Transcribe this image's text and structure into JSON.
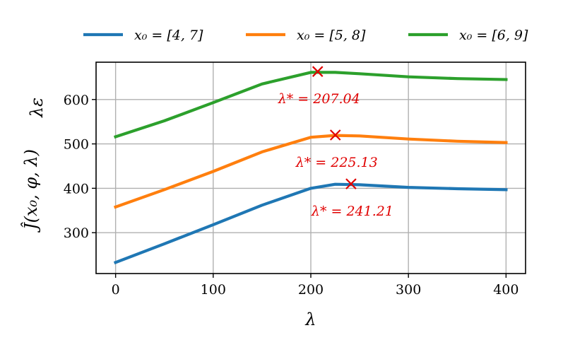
{
  "chart_data": {
    "type": "line",
    "xlabel": "λ",
    "ylabel": "Ĵ(x₀, φ, λ)",
    "ylabel_secondary": "λε",
    "xlim": [
      -20,
      420
    ],
    "ylim": [
      208,
      684
    ],
    "xticks": [
      0,
      100,
      200,
      300,
      400
    ],
    "yticks": [
      300,
      400,
      500,
      600
    ],
    "grid": true,
    "legend_position": "top",
    "series": [
      {
        "name": "x₀ = [4, 7]",
        "color": "#1f77b4",
        "x": [
          0,
          50,
          100,
          150,
          200,
          225,
          250,
          300,
          350,
          400
        ],
        "y": [
          233,
          275,
          318,
          362,
          400,
          409,
          408,
          402,
          399,
          397
        ]
      },
      {
        "name": "x₀ = [5, 8]",
        "color": "#ff7f0e",
        "x": [
          0,
          50,
          100,
          150,
          200,
          225,
          250,
          300,
          350,
          400
        ],
        "y": [
          358,
          397,
          438,
          482,
          515,
          519,
          518,
          511,
          506,
          503
        ]
      },
      {
        "name": "x₀ = [6, 9]",
        "color": "#2ca02c",
        "x": [
          0,
          50,
          100,
          150,
          200,
          225,
          250,
          300,
          350,
          400
        ],
        "y": [
          516,
          552,
          593,
          635,
          661,
          661,
          658,
          651,
          647,
          645
        ]
      }
    ],
    "markers": [
      {
        "x": 207.04,
        "y": 663,
        "label": "λ* = 207.04",
        "color": "#e00000"
      },
      {
        "x": 225.13,
        "y": 520,
        "label": "λ* = 225.13",
        "color": "#e00000"
      },
      {
        "x": 241.21,
        "y": 410,
        "label": "λ* = 241.21",
        "color": "#e00000"
      }
    ]
  }
}
